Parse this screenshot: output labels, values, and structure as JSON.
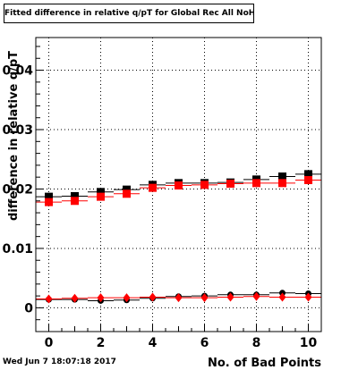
{
  "chart_data": {
    "type": "scatter",
    "title": "Fitted difference in relative q/pT for Global Rec All NoHits",
    "xlabel": "No. of Bad Points",
    "ylabel": "difference in relative q/pT",
    "xlim": [
      -0.5,
      10.5
    ],
    "ylim": [
      -0.004,
      0.0455
    ],
    "grid": true,
    "x_ticks": [
      "0",
      "2",
      "4",
      "6",
      "8",
      "10"
    ],
    "y_ticks": [
      "0",
      "0.01",
      "0.02",
      "0.03",
      "0.04"
    ],
    "x": [
      0,
      1,
      2,
      3,
      4,
      5,
      6,
      7,
      8,
      9,
      10
    ],
    "series": [
      {
        "marker": "square",
        "color": "#000000",
        "values": [
          0.0187,
          0.0188,
          0.0195,
          0.0199,
          0.0207,
          0.021,
          0.021,
          0.0211,
          0.0216,
          0.0221,
          0.0225
        ]
      },
      {
        "marker": "square",
        "color": "#ff0000",
        "values": [
          0.0178,
          0.018,
          0.0187,
          0.0192,
          0.0202,
          0.0206,
          0.0207,
          0.0209,
          0.021,
          0.021,
          0.0215
        ]
      },
      {
        "marker": "circle",
        "color": "#000000",
        "values": [
          0.0014,
          0.0014,
          0.0012,
          0.0013,
          0.0016,
          0.0019,
          0.002,
          0.0022,
          0.0022,
          0.0025,
          0.0024
        ]
      },
      {
        "marker": "diamond",
        "color": "#ff0000",
        "values": [
          0.0015,
          0.0016,
          0.0017,
          0.0017,
          0.0018,
          0.0017,
          0.0017,
          0.0018,
          0.0019,
          0.0018,
          0.0018
        ]
      }
    ]
  },
  "footer": {
    "date": "Wed Jun  7 18:07:18 2017"
  }
}
